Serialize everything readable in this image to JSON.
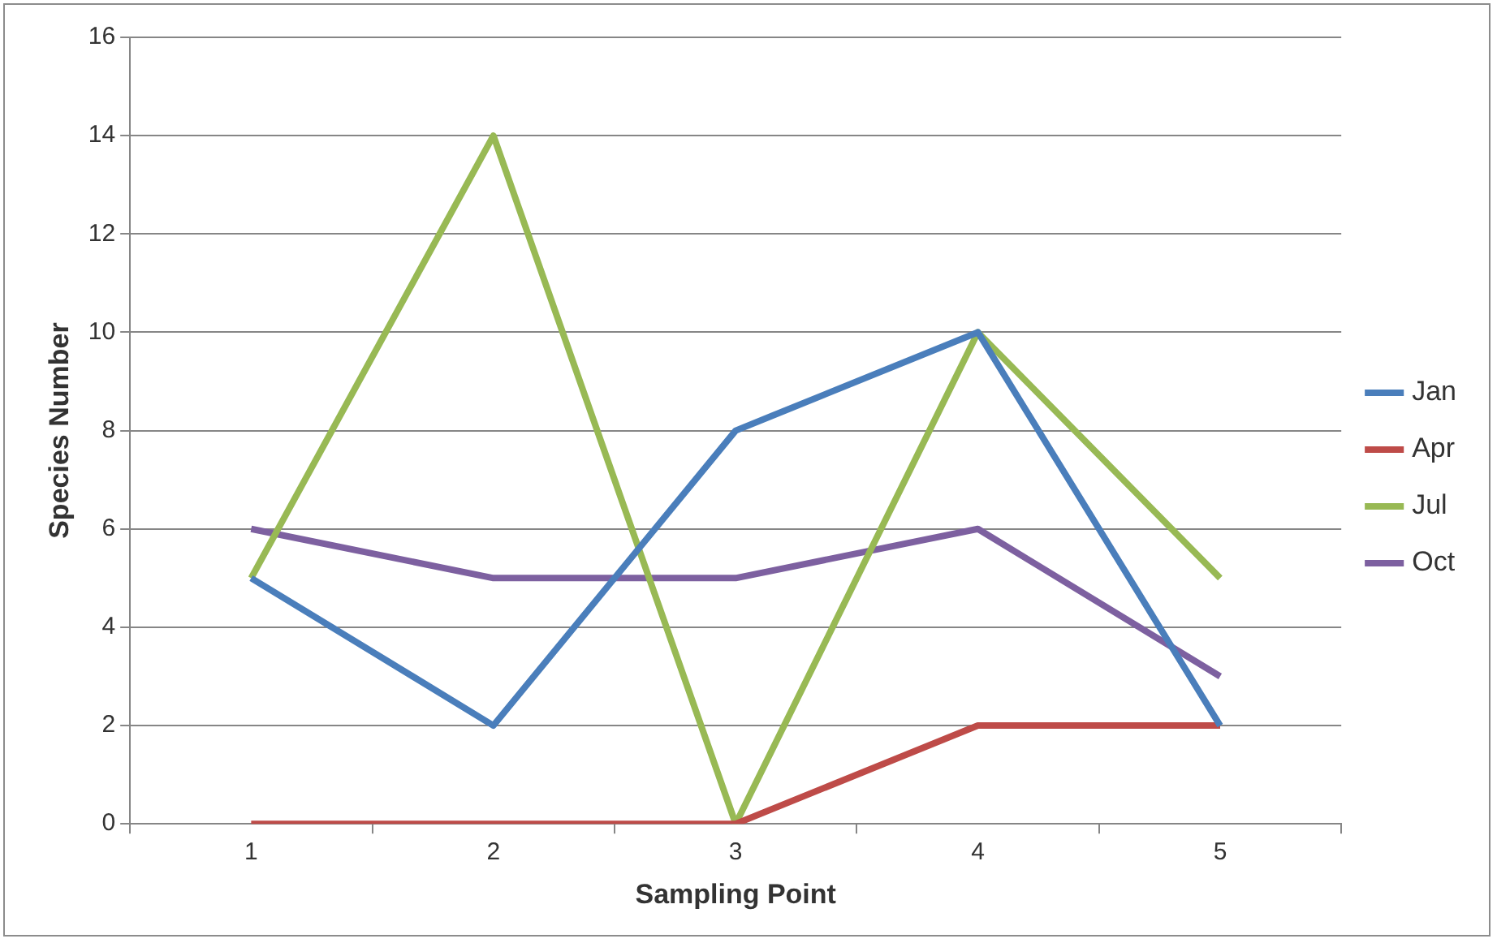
{
  "chart_data": {
    "type": "line",
    "xlabel": "Sampling Point",
    "ylabel": "Species Number",
    "categories": [
      "1",
      "2",
      "3",
      "4",
      "5"
    ],
    "series": [
      {
        "name": "Jan",
        "color": "#4a7ebb",
        "values": [
          5,
          2,
          8,
          10,
          2
        ]
      },
      {
        "name": "Apr",
        "color": "#be4b48",
        "values": [
          0,
          0,
          0,
          2,
          2
        ]
      },
      {
        "name": "Jul",
        "color": "#98b954",
        "values": [
          5,
          14,
          0,
          10,
          5
        ]
      },
      {
        "name": "Oct",
        "color": "#7d60a0",
        "values": [
          6,
          5,
          5,
          6,
          3
        ]
      }
    ],
    "ylim": [
      0,
      16
    ],
    "yticks": [
      0,
      2,
      4,
      6,
      8,
      10,
      12,
      14,
      16
    ],
    "grid": "y",
    "legend": "right",
    "marker": "none",
    "line_style": "solid"
  }
}
